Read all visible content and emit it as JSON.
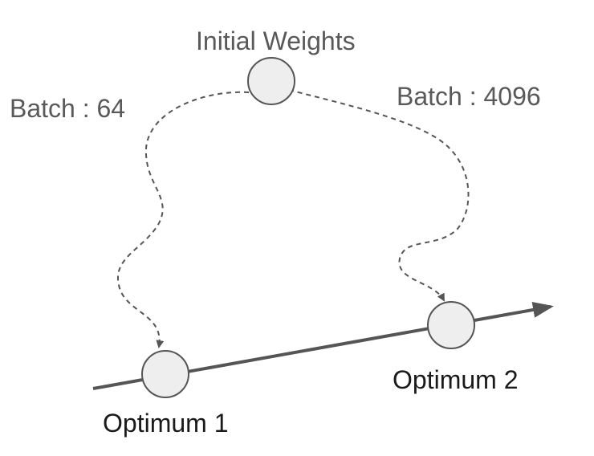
{
  "labels": {
    "initial_weights": "Initial Weights",
    "batch_small": "Batch : 64",
    "batch_large": "Batch : 4096",
    "optimum_1": "Optimum 1",
    "optimum_2": "Optimum 2"
  },
  "colors": {
    "node_fill": "#eeeeee",
    "stroke": "#555555",
    "label_gray": "#595959",
    "label_dark": "#1a1a1a"
  }
}
